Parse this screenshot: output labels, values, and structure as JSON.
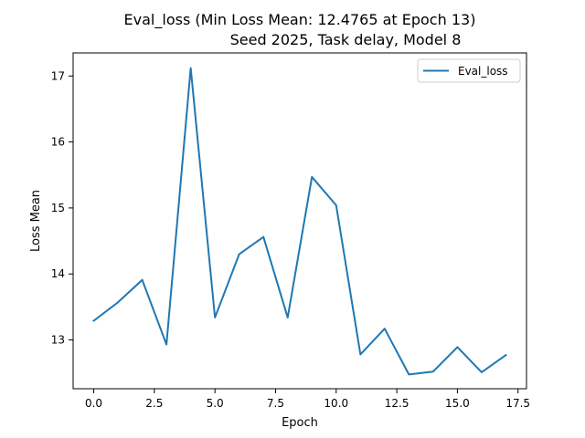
{
  "chart_data": {
    "type": "line",
    "title_line1": "Eval_loss (Min Loss Mean: 12.4765 at Epoch 13)",
    "title_line2": "Seed 2025, Task delay, Model 8",
    "xlabel": "Epoch",
    "ylabel": "Loss Mean",
    "xlim": [
      -0.85,
      17.85
    ],
    "ylim": [
      12.26,
      17.35
    ],
    "xticks": [
      0.0,
      2.5,
      5.0,
      7.5,
      10.0,
      12.5,
      15.0,
      17.5
    ],
    "xtick_labels": [
      "0.0",
      "2.5",
      "5.0",
      "7.5",
      "10.0",
      "12.5",
      "15.0",
      "17.5"
    ],
    "yticks": [
      13,
      14,
      15,
      16,
      17
    ],
    "ytick_labels": [
      "13",
      "14",
      "15",
      "16",
      "17"
    ],
    "grid": false,
    "legend_position": "top-right",
    "series": [
      {
        "name": "Eval_loss",
        "color": "#1f77b4",
        "x": [
          0,
          1,
          2,
          3,
          4,
          5,
          6,
          7,
          8,
          9,
          10,
          11,
          12,
          13,
          14,
          15,
          16,
          17
        ],
        "y": [
          13.29,
          13.57,
          13.91,
          12.93,
          17.12,
          13.34,
          14.3,
          14.56,
          13.34,
          15.47,
          15.04,
          12.78,
          13.17,
          12.4765,
          12.52,
          12.89,
          12.51,
          12.77
        ]
      }
    ]
  }
}
